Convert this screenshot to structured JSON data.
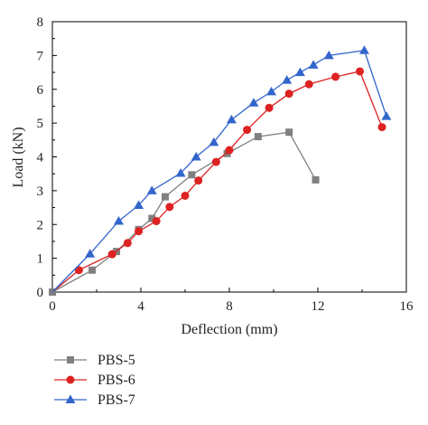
{
  "chart_data": {
    "type": "line",
    "xlabel": "Deflection (mm)",
    "ylabel": "Load (kN)",
    "xlim": [
      0,
      16
    ],
    "ylim": [
      0,
      8
    ],
    "xticks": [
      0,
      4,
      8,
      12,
      16
    ],
    "yticks": [
      0,
      1,
      2,
      3,
      4,
      5,
      6,
      7,
      8
    ],
    "grid": false,
    "legend_position": "bottom-left",
    "series": [
      {
        "name": "PBS-5",
        "color": "#808080",
        "marker": "square",
        "x": [
          0,
          1.8,
          2.9,
          3.9,
          4.5,
          5.1,
          6.3,
          7.9,
          9.3,
          10.7,
          11.9
        ],
        "y": [
          0,
          0.65,
          1.2,
          1.85,
          2.18,
          2.82,
          3.47,
          4.1,
          4.6,
          4.73,
          3.32
        ]
      },
      {
        "name": "PBS-6",
        "color": "#dd2222",
        "marker": "circle",
        "x": [
          0,
          1.2,
          2.7,
          3.4,
          3.9,
          4.7,
          5.3,
          6.0,
          6.6,
          7.4,
          8.0,
          8.8,
          9.8,
          10.7,
          11.6,
          12.8,
          13.9,
          14.9
        ],
        "y": [
          0,
          0.65,
          1.12,
          1.45,
          1.8,
          2.1,
          2.52,
          2.85,
          3.3,
          3.85,
          4.2,
          4.8,
          5.45,
          5.87,
          6.15,
          6.37,
          6.53,
          4.88
        ],
        "markers_from": 1
      },
      {
        "name": "PBS-7",
        "color": "#3366cc",
        "marker": "triangle",
        "x": [
          0,
          1.7,
          3.0,
          3.9,
          4.5,
          5.8,
          6.5,
          7.3,
          8.1,
          9.1,
          9.9,
          10.6,
          11.2,
          11.8,
          12.5,
          14.1,
          15.1
        ],
        "y": [
          0,
          1.13,
          2.1,
          2.57,
          3.0,
          3.52,
          4.0,
          4.43,
          5.1,
          5.6,
          5.93,
          6.27,
          6.5,
          6.72,
          7.0,
          7.15,
          5.2
        ],
        "markers_from": 1
      }
    ]
  }
}
